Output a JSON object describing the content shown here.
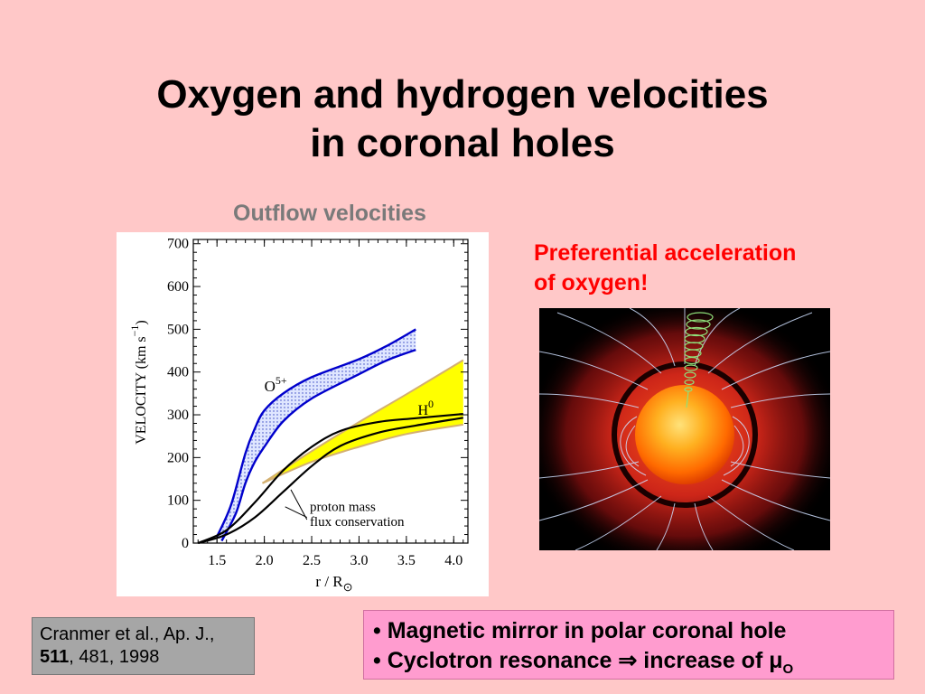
{
  "slide": {
    "title_line1": "Oxygen and hydrogen velocities",
    "title_line2": "in coronal holes",
    "subtitle": "Outflow  velocities",
    "note_line1": "Preferential acceleration",
    "note_line2": "of oxygen!",
    "citation": {
      "line1": "Cranmer et al., Ap. J.,",
      "volume": "511",
      "rest": ", 481, 1998"
    },
    "bullets": {
      "item1": "Magnetic mirror in polar coronal hole",
      "item2_text": "Cyclotron resonance",
      "item2_arrow": "⇒",
      "item2_tail": "increase of",
      "item2_mu": "μ",
      "item2_sub": "O",
      "bullet_char": "•"
    },
    "image": {
      "description_icon": "sun-corona-image"
    }
  },
  "chart_data": {
    "type": "line",
    "xlim": [
      1.25,
      4.15
    ],
    "ylim": [
      0,
      710
    ],
    "x_ticks": [
      "1.5",
      "2.0",
      "2.5",
      "3.0",
      "3.5",
      "4.0"
    ],
    "y_ticks": [
      "0",
      "100",
      "200",
      "300",
      "400",
      "500",
      "600",
      "700"
    ],
    "ylabel": "VELOCITY   (km s",
    "ylabel_sup": "−1",
    "ylabel_end": ")",
    "xlabel": "r  /  R",
    "xlabel_sub": "⊙",
    "series": [
      {
        "name": "O5+",
        "color": "#0000cc",
        "upper": [
          [
            1.5,
            15
          ],
          [
            1.65,
            90
          ],
          [
            1.8,
            210
          ],
          [
            1.9,
            268
          ],
          [
            2.0,
            310
          ],
          [
            2.2,
            350
          ],
          [
            2.5,
            388
          ],
          [
            3.0,
            430
          ],
          [
            3.3,
            462
          ],
          [
            3.6,
            500
          ]
        ],
        "lower": [
          [
            1.55,
            5
          ],
          [
            1.7,
            70
          ],
          [
            1.8,
            140
          ],
          [
            1.9,
            190
          ],
          [
            2.0,
            225
          ],
          [
            2.2,
            285
          ],
          [
            2.5,
            338
          ],
          [
            3.0,
            395
          ],
          [
            3.3,
            428
          ],
          [
            3.6,
            452
          ]
        ]
      },
      {
        "name": "H0",
        "color": "#d4b070",
        "fill": "#ffff00",
        "upper": [
          [
            1.98,
            140
          ],
          [
            2.5,
            215
          ],
          [
            3.0,
            283
          ],
          [
            3.5,
            348
          ],
          [
            4.1,
            428
          ]
        ],
        "lower": [
          [
            1.98,
            140
          ],
          [
            2.5,
            190
          ],
          [
            3.0,
            225
          ],
          [
            3.5,
            255
          ],
          [
            4.1,
            277
          ]
        ]
      },
      {
        "name": "proton mass flux conservation",
        "color": "#000000",
        "curves": [
          [
            [
              1.3,
              0
            ],
            [
              1.6,
              30
            ],
            [
              1.9,
              95
            ],
            [
              2.2,
              170
            ],
            [
              2.5,
              225
            ],
            [
              2.8,
              262
            ],
            [
              3.2,
              283
            ],
            [
              3.6,
              292
            ],
            [
              4.1,
              302
            ]
          ],
          [
            [
              1.3,
              0
            ],
            [
              1.6,
              20
            ],
            [
              1.9,
              60
            ],
            [
              2.2,
              120
            ],
            [
              2.5,
              180
            ],
            [
              2.8,
              227
            ],
            [
              3.2,
              258
            ],
            [
              3.6,
              275
            ],
            [
              4.1,
              293
            ]
          ]
        ]
      }
    ],
    "annotations": {
      "o5_base": "O",
      "o5_sup": "5+",
      "h0_base": "H",
      "h0_sup": "0",
      "proton_line1": "proton mass",
      "proton_line2": "flux conservation"
    }
  }
}
